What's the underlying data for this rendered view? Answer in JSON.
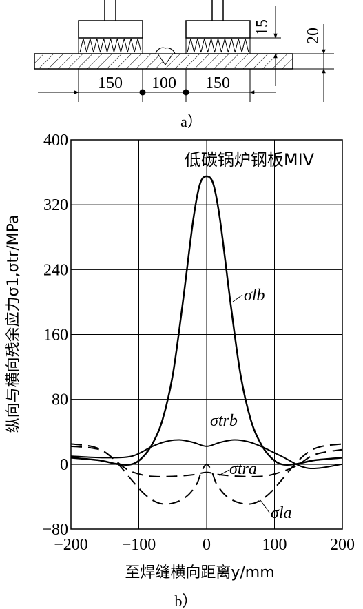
{
  "diagram": {
    "dimensions": {
      "left_span": "150",
      "center_span": "100",
      "right_span": "150",
      "height_small": "15",
      "height_large": "20"
    },
    "label_a": "a）"
  },
  "chart_data": {
    "type": "line",
    "title": "低碳锅炉钢板MIV",
    "ylabel": "纵向与横向残余应力σ1,σtr/MPa",
    "xlabel": "至焊缝横向距离y/mm",
    "xlim": [
      -200,
      200
    ],
    "ylim": [
      -80,
      400
    ],
    "grid": true,
    "x_ticks": [
      "−200",
      "−100",
      "0",
      "100",
      "200"
    ],
    "y_ticks": [
      "400",
      "320",
      "240",
      "160",
      "80",
      "0",
      "−80"
    ],
    "x_tick_values": [
      -200,
      -100,
      0,
      100,
      200
    ],
    "y_tick_values": [
      400,
      320,
      240,
      160,
      80,
      0,
      -80
    ],
    "series": [
      {
        "name": "σlb",
        "style": "solid",
        "x": [
          -200,
          -160,
          -130,
          -110,
          -95,
          -80,
          -65,
          -50,
          -35,
          -20,
          -10,
          0,
          10,
          20,
          35,
          50,
          65,
          80,
          95,
          110,
          130,
          160,
          200
        ],
        "y": [
          8,
          5,
          0,
          0,
          8,
          25,
          55,
          110,
          200,
          300,
          345,
          355,
          345,
          300,
          200,
          110,
          55,
          25,
          8,
          0,
          0,
          5,
          8
        ]
      },
      {
        "name": "σtrb",
        "style": "solid",
        "x": [
          -200,
          -150,
          -110,
          -80,
          -60,
          -40,
          -20,
          0,
          20,
          40,
          60,
          80,
          110,
          150,
          200
        ],
        "y": [
          10,
          8,
          10,
          22,
          28,
          30,
          27,
          22,
          27,
          30,
          28,
          22,
          10,
          -5,
          0
        ]
      },
      {
        "name": "σtra",
        "style": "dashed",
        "x": [
          -200,
          -170,
          -150,
          -120,
          -100,
          -80,
          -50,
          -20,
          0,
          20,
          50,
          80,
          100,
          130,
          160,
          200
        ],
        "y": [
          22,
          20,
          15,
          -5,
          -12,
          -15,
          -15,
          -13,
          -10,
          -13,
          -15,
          -15,
          -12,
          -3,
          12,
          18
        ]
      },
      {
        "name": "σla",
        "style": "dashed",
        "x": [
          -200,
          -170,
          -150,
          -130,
          -110,
          -90,
          -70,
          -50,
          -30,
          -15,
          -8,
          0,
          8,
          15,
          30,
          50,
          70,
          90,
          110,
          130,
          150,
          170,
          200
        ],
        "y": [
          25,
          22,
          15,
          0,
          -20,
          -38,
          -48,
          -48,
          -40,
          -25,
          -10,
          0,
          -10,
          -25,
          -40,
          -48,
          -48,
          -38,
          -20,
          0,
          15,
          22,
          25
        ]
      }
    ],
    "series_labels": [
      "σlb",
      "σtrb",
      "σtra",
      "σla"
    ]
  },
  "label_b": "b）"
}
